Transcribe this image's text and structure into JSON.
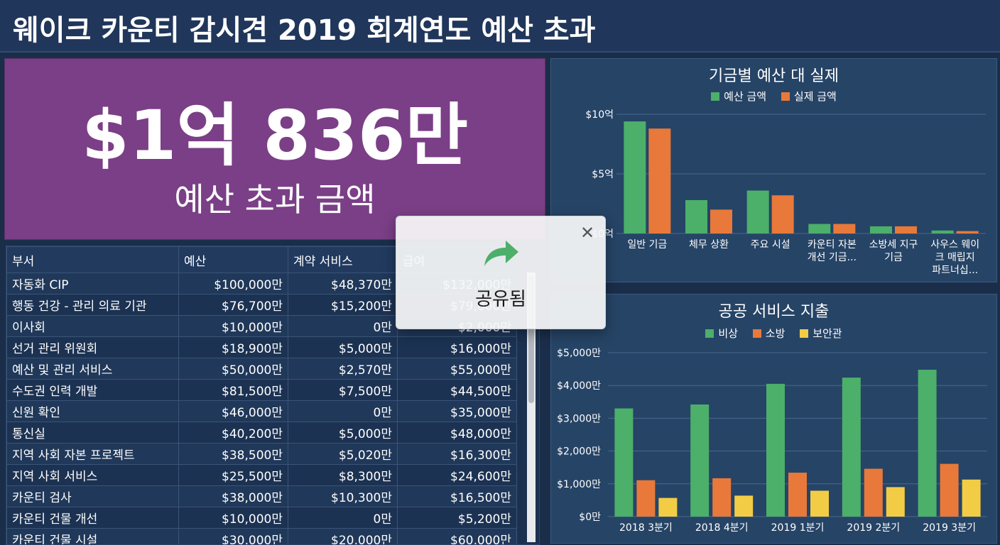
{
  "header": {
    "title": "웨이크 카운티 감시견 2019 회계연도 예산 초과"
  },
  "kpi": {
    "value": "$1억 836만",
    "label": "예산 초과 금액"
  },
  "table": {
    "columns": [
      "부서",
      "예산",
      "계약 서비스",
      "급여"
    ],
    "rows": [
      [
        "자동화 CIP",
        "$100,000만",
        "$48,370만",
        "$132,000만"
      ],
      [
        "행동 건강 - 관리 의료 기관",
        "$76,700만",
        "$15,200만",
        "$79,000만"
      ],
      [
        "이사회",
        "$10,000만",
        "0만",
        "$2,000만"
      ],
      [
        "선거 관리 위원회",
        "$18,900만",
        "$5,000만",
        "$16,000만"
      ],
      [
        "예산 및 관리 서비스",
        "$50,000만",
        "$2,570만",
        "$55,000만"
      ],
      [
        "수도권 인력 개발",
        "$81,500만",
        "$7,500만",
        "$44,500만"
      ],
      [
        "신원 확인",
        "$46,000만",
        "0만",
        "$35,000만"
      ],
      [
        "통신실",
        "$40,200만",
        "$5,000만",
        "$48,000만"
      ],
      [
        "지역 사회 자본 프로젝트",
        "$38,500만",
        "$5,020만",
        "$16,300만"
      ],
      [
        "지역 사회 서비스",
        "$25,500만",
        "$8,300만",
        "$24,600만"
      ],
      [
        "카운티 검사",
        "$38,000만",
        "$10,300만",
        "$16,500만"
      ],
      [
        "카운티 건물 개선",
        "$10,000만",
        "0만",
        "$5,200만"
      ],
      [
        "카운티 건물 시설",
        "$30,000만",
        "$20,000만",
        "$60,000만"
      ]
    ]
  },
  "toast": {
    "message": "공유됨",
    "close_icon": "close-icon",
    "icon": "share-arrow-icon"
  },
  "colors": {
    "green": "#4caf6a",
    "orange": "#e8793a",
    "yellow": "#f3cc45",
    "kpi_bg": "#7a3f86"
  },
  "chart_data": [
    {
      "type": "bar",
      "title": "기금별 예산 대 실제",
      "categories": [
        "일반 기금",
        "체무 상환",
        "주요 시설",
        "카운티 자본 개선 기금...",
        "소방세 지구 기금",
        "사우스 웨이크 매립지 파트너십..."
      ],
      "series": [
        {
          "name": "예산 금액",
          "values": [
            9.4,
            2.8,
            3.6,
            0.8,
            0.6,
            0.25
          ]
        },
        {
          "name": "실제 금액",
          "values": [
            8.8,
            2.0,
            3.2,
            0.8,
            0.6,
            0.2
          ]
        }
      ],
      "yticks": [
        "$0억",
        "$5억",
        "$10억"
      ],
      "ylim": [
        0,
        10
      ],
      "grid": true,
      "legend": "top"
    },
    {
      "type": "bar",
      "title": "공공 서비스 지출",
      "categories": [
        "2018 3분기",
        "2018 4분기",
        "2019 1분기",
        "2019 2분기",
        "2019 3분기"
      ],
      "series": [
        {
          "name": "비상",
          "values": [
            3300,
            3420,
            4050,
            4240,
            4480
          ]
        },
        {
          "name": "소방",
          "values": [
            1110,
            1170,
            1340,
            1460,
            1610
          ]
        },
        {
          "name": "보안관",
          "values": [
            570,
            640,
            790,
            900,
            1130
          ]
        }
      ],
      "yticks": [
        "$0만",
        "$1,000만",
        "$2,000만",
        "$3,000만",
        "$4,000만",
        "$5,000만"
      ],
      "ylim": [
        0,
        5000
      ],
      "grid": true,
      "legend": "top"
    }
  ]
}
